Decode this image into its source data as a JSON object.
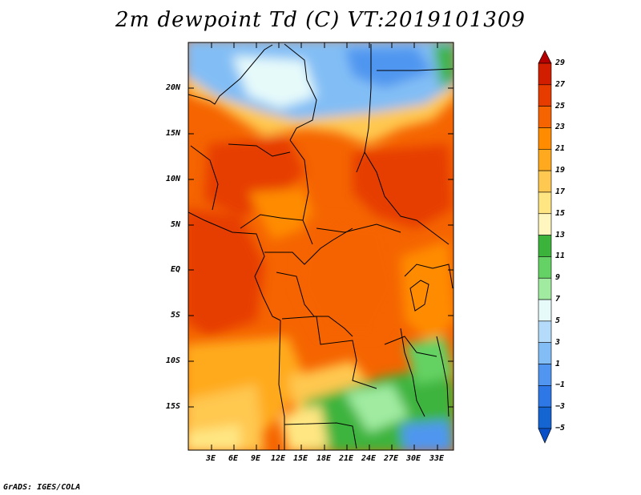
{
  "title": "2m dewpoint Td (C) VT:2019101309",
  "credit": "GrADS: IGES/COLA",
  "map": {
    "lat_labels": [
      "20N",
      "15N",
      "10N",
      "5N",
      "EQ",
      "5S",
      "10S",
      "15S"
    ],
    "lon_labels": [
      "3E",
      "6E",
      "9E",
      "12E",
      "15E",
      "18E",
      "21E",
      "24E",
      "27E",
      "30E",
      "33E"
    ]
  },
  "colorbar": {
    "labels": [
      "29",
      "27",
      "25",
      "23",
      "21",
      "19",
      "17",
      "15",
      "13",
      "11",
      "9",
      "7",
      "5",
      "3",
      "1",
      "−1",
      "−3",
      "−5"
    ],
    "colors": [
      "#b40000",
      "#d21e00",
      "#e63c00",
      "#f56400",
      "#ff8c00",
      "#ffaa1e",
      "#ffc850",
      "#ffe682",
      "#fff5be",
      "#3cb43c",
      "#64d264",
      "#a0ebA0",
      "#e6fafa",
      "#b4dcfa",
      "#82bef5",
      "#5096f0",
      "#2d78e6",
      "#1464d2",
      "#0a50c8"
    ]
  }
}
